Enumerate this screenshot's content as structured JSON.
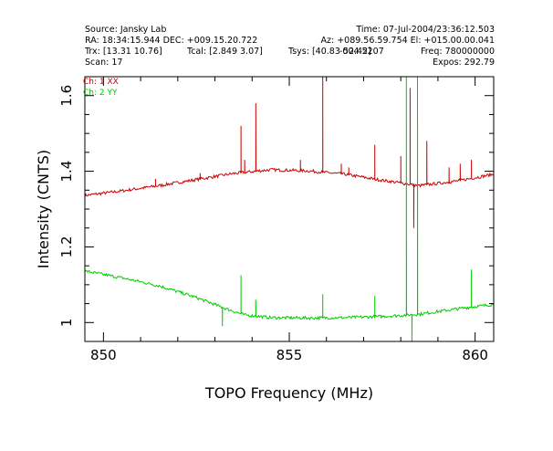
{
  "header": {
    "source": "Source: Jansky Lab",
    "time": "Time: 07-Jul-2004/23:36:12.503",
    "radec": "RA: 18:34:15.944 DEC: +009.15.20.722",
    "azel": "Az: +089.56.59.754 El: +015.00.00.041",
    "trx": "Trx: [13.31 10.76]",
    "tcal": "Tcal: [2.849 3.07]",
    "tsys": "Tsys: [40.83 52.42]",
    "doppler": "-004.5207",
    "freq": "Freq: 780000000",
    "scan": "Scan: 17",
    "expos": "Expos: 292.79"
  },
  "colors": {
    "ch1": "#cc0000",
    "ch2": "#00cc00",
    "axis": "#000000"
  },
  "chart_data": {
    "type": "line",
    "xlabel": "TOPO Frequency (MHz)",
    "ylabel": "Intensity (CNTS)",
    "xlim": [
      849.5,
      860.5
    ],
    "ylim": [
      0.95,
      1.65
    ],
    "xticks": [
      850,
      855,
      860
    ],
    "yticks": [
      1,
      1.2,
      1.4,
      1.6
    ],
    "xtick_labels": [
      "850",
      "855",
      "860"
    ],
    "ytick_labels": [
      "1",
      "1.2",
      "1.4",
      "1.6"
    ],
    "legend_placement": "top-left",
    "series": [
      {
        "name": "Ch: 1 XX",
        "color": "#cc0000",
        "baseline": [
          [
            849.5,
            1.336
          ],
          [
            850.5,
            1.348
          ],
          [
            851.5,
            1.362
          ],
          [
            852.5,
            1.378
          ],
          [
            853.5,
            1.394
          ],
          [
            854.5,
            1.404
          ],
          [
            855.5,
            1.401
          ],
          [
            856.5,
            1.392
          ],
          [
            857.5,
            1.376
          ],
          [
            858.5,
            1.362
          ],
          [
            859.5,
            1.374
          ],
          [
            860.5,
            1.392
          ]
        ],
        "spikes": [
          [
            851.4,
            1.38
          ],
          [
            852.6,
            1.395
          ],
          [
            853.7,
            1.52
          ],
          [
            853.8,
            1.43
          ],
          [
            854.1,
            1.58
          ],
          [
            855.3,
            1.43
          ],
          [
            855.9,
            1.66
          ],
          [
            856.4,
            1.42
          ],
          [
            856.6,
            1.41
          ],
          [
            857.3,
            1.47
          ],
          [
            858.0,
            1.44
          ],
          [
            858.25,
            1.62
          ],
          [
            858.35,
            1.25
          ],
          [
            858.7,
            1.48
          ],
          [
            859.3,
            1.41
          ],
          [
            859.6,
            1.42
          ],
          [
            859.9,
            1.43
          ]
        ]
      },
      {
        "name": "Ch: 2 YY",
        "color": "#00cc00",
        "baseline": [
          [
            849.5,
            1.136
          ],
          [
            850.5,
            1.118
          ],
          [
            851.5,
            1.097
          ],
          [
            852.5,
            1.066
          ],
          [
            853.2,
            1.04
          ],
          [
            853.8,
            1.02
          ],
          [
            854.5,
            1.013
          ],
          [
            855.5,
            1.012
          ],
          [
            856.5,
            1.013
          ],
          [
            857.5,
            1.016
          ],
          [
            858.5,
            1.022
          ],
          [
            859.5,
            1.036
          ],
          [
            860.5,
            1.048
          ]
        ],
        "spikes": [
          [
            853.2,
            0.99
          ],
          [
            853.7,
            1.125
          ],
          [
            854.1,
            1.06
          ],
          [
            855.9,
            1.075
          ],
          [
            857.3,
            1.07
          ],
          [
            858.15,
            1.66
          ],
          [
            858.3,
            0.95
          ],
          [
            858.45,
            1.66
          ],
          [
            859.9,
            1.14
          ]
        ]
      }
    ]
  }
}
